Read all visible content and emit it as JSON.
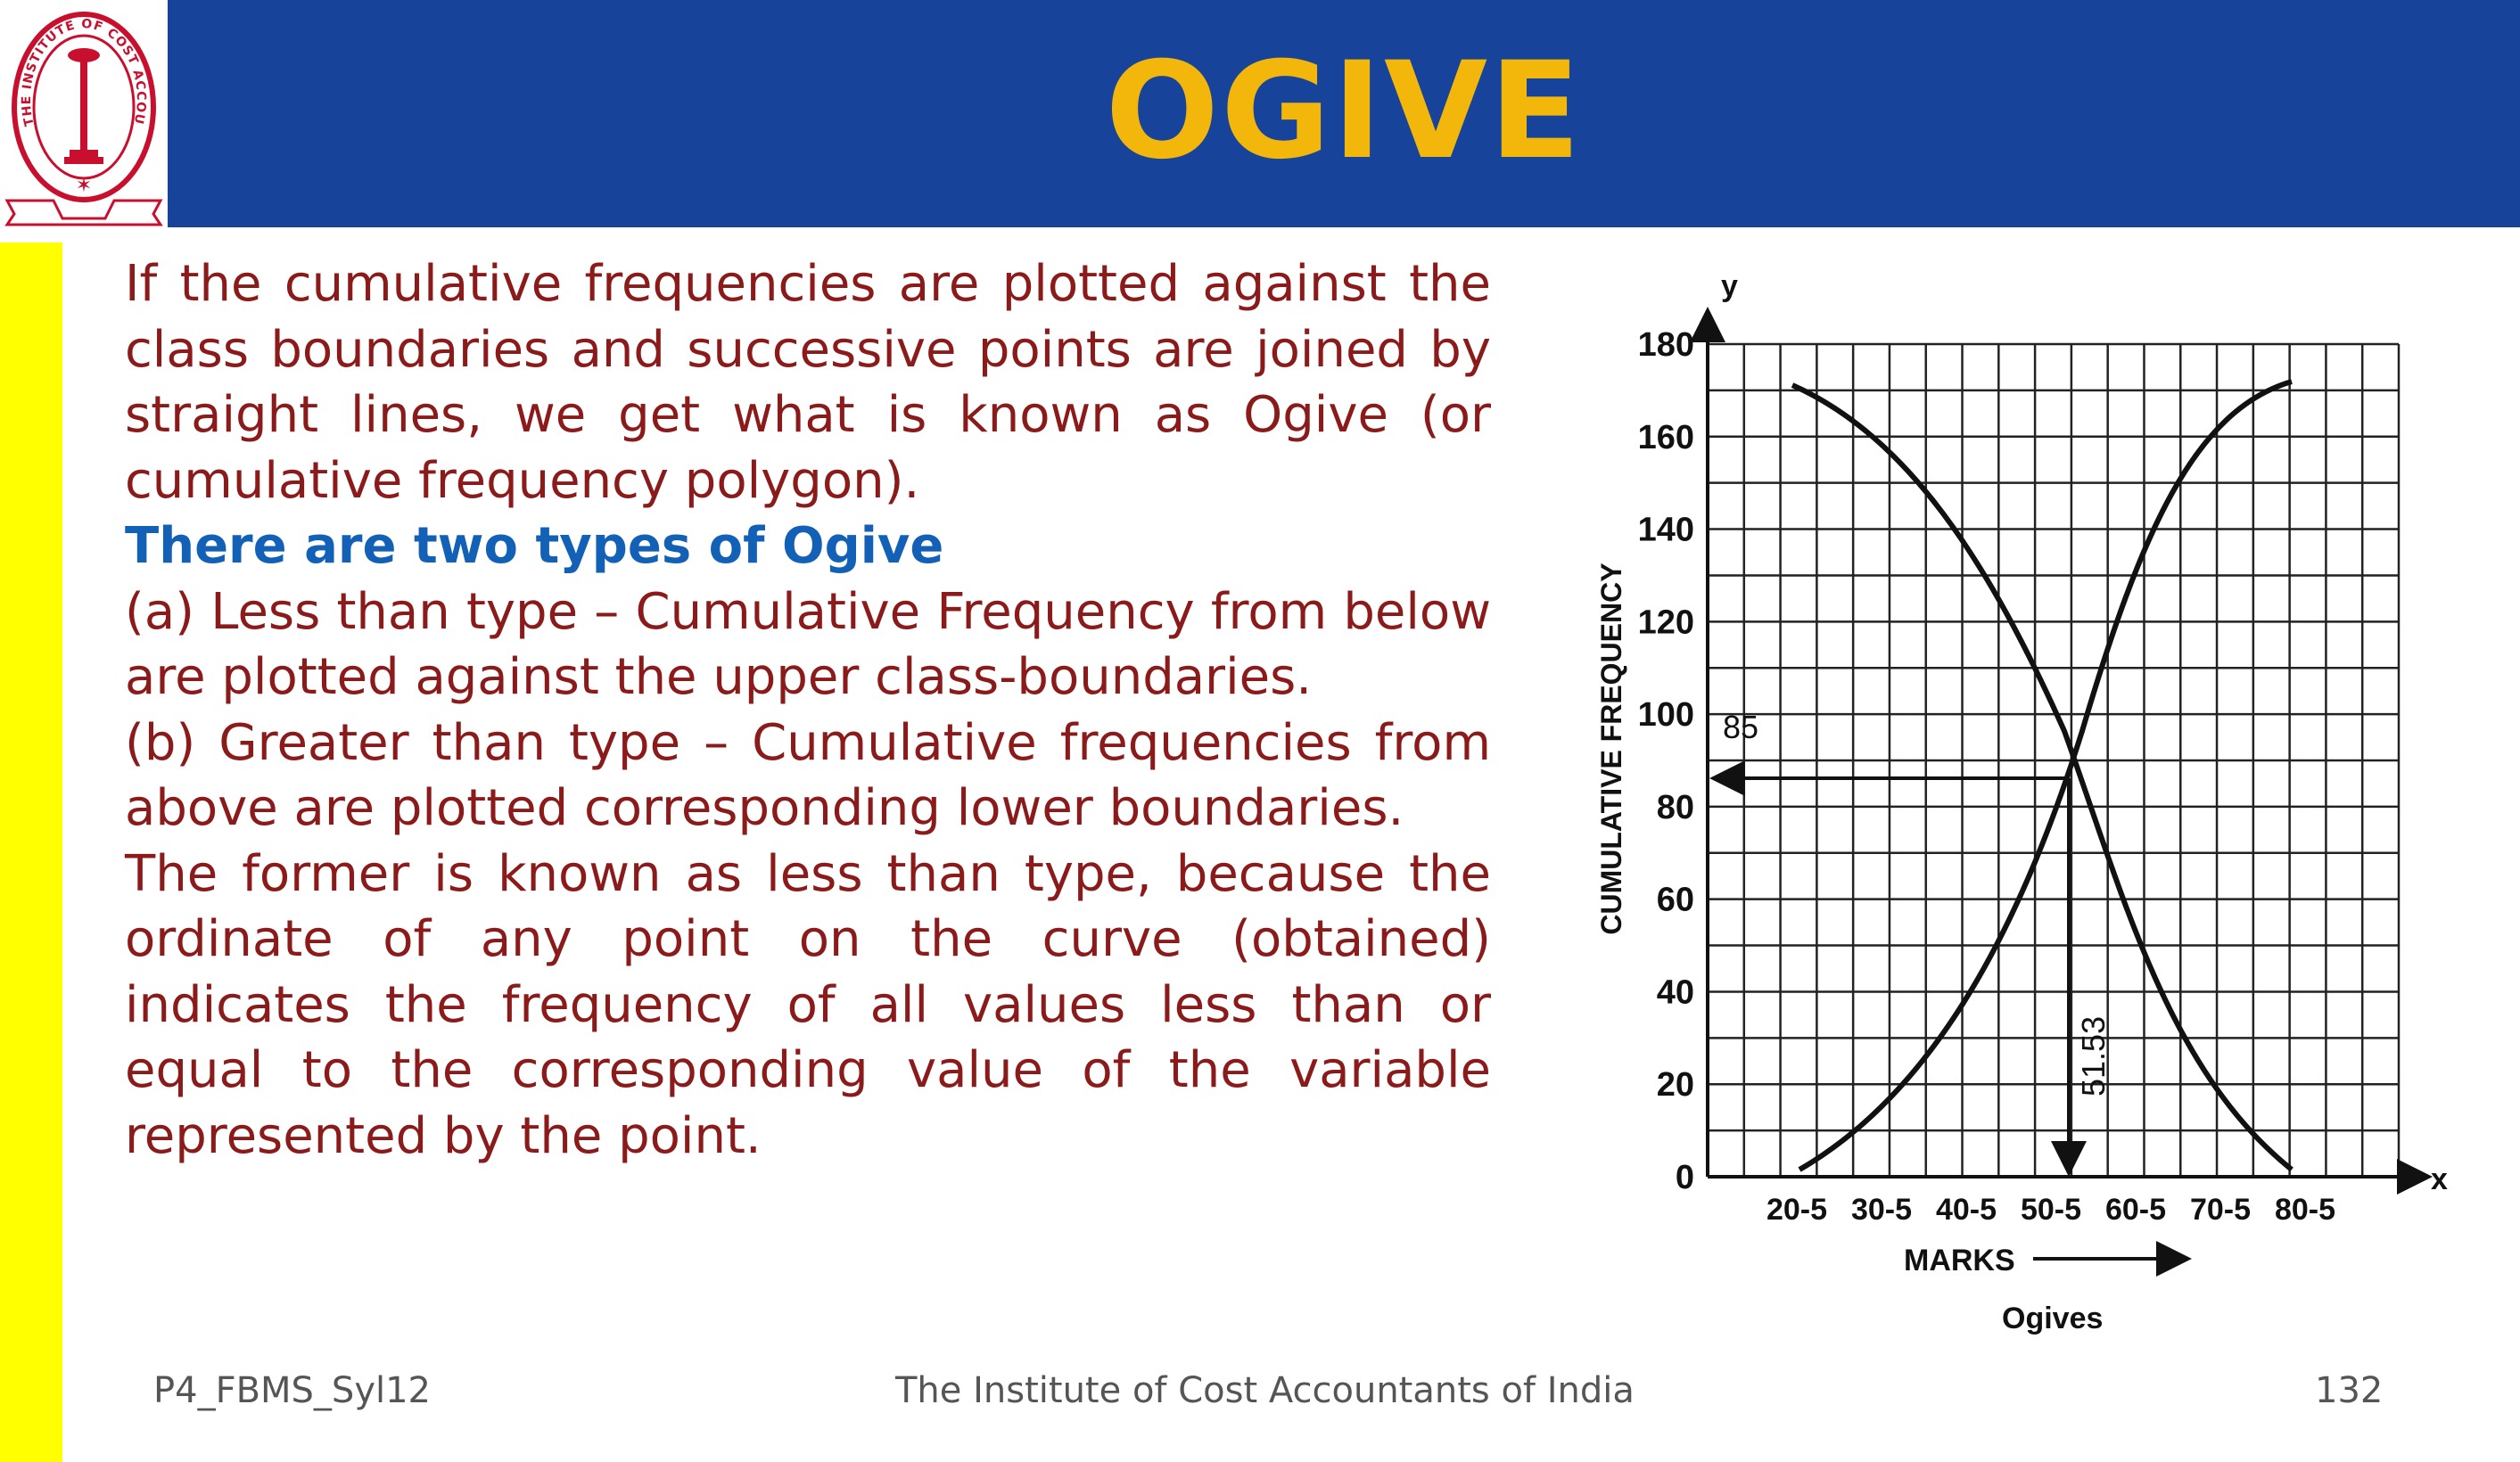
{
  "header": {
    "title": "OGIVE",
    "logo_ring_text": "THE INSTITUTE OF COST ACCOUNTANTS OF INDIA"
  },
  "content": {
    "paragraph1": "If the cumulative frequencies are plotted against the class boundaries and successive points are joined by straight lines, we get what is known as Ogive (or cumulative frequency polygon).",
    "subheading": "There are two types of Ogive",
    "type_a": "(a) Less than type – Cumulative Frequency from below are plotted against the upper class-boundaries.",
    "type_b": "(b) Greater than type – Cumulative frequencies from above are plotted corresponding lower boundaries.",
    "paragraph2": "The former is known as less than type, because the ordinate of any point on the curve (obtained) indicates the frequency of all values less than or equal to the corresponding value of the variable represented by the point."
  },
  "figure": {
    "y_axis_letter": "y",
    "x_axis_letter": "x",
    "y_label": "CUMULATIVE FREQUENCY",
    "y_ticks": [
      "0",
      "20",
      "40",
      "60",
      "80",
      "100",
      "120",
      "140",
      "160",
      "180"
    ],
    "x_ticks": [
      "20-5",
      "30-5",
      "40-5",
      "50-5",
      "60-5",
      "70-5",
      "80-5"
    ],
    "x_label": "MARKS",
    "caption": "Ogives",
    "annotation_85": "85",
    "annotation_median": "51.53"
  },
  "footer": {
    "left": "P4_FBMS_Syl12",
    "center": "The Institute of Cost Accountants of India",
    "page": "132"
  },
  "colors": {
    "header_bg": "#17449a",
    "title": "#f2b70a",
    "side_bar": "#ffff00",
    "body_text": "#8b1a1a",
    "subheading": "#1261b6",
    "logo_red": "#c8102e"
  }
}
